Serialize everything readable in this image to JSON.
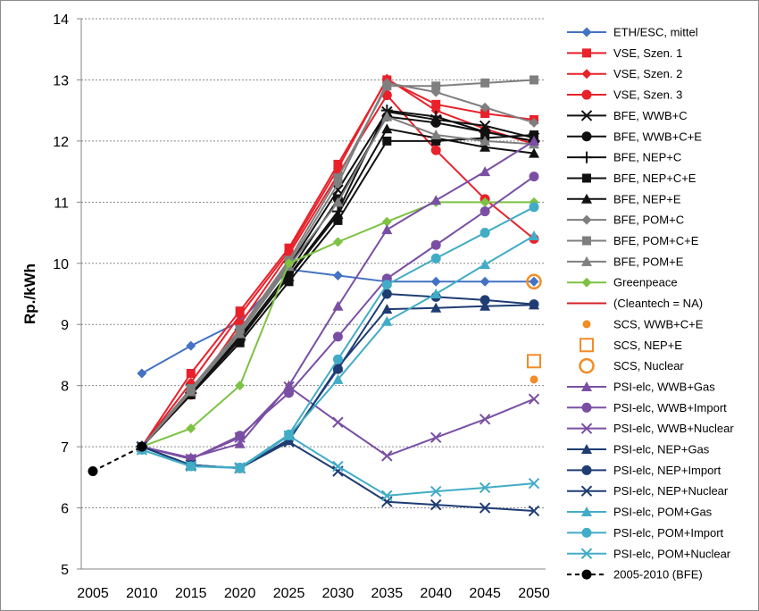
{
  "chart_data": {
    "type": "line",
    "xlabel": "",
    "ylabel": "Rp./kWh",
    "x_ticks": [
      2005,
      2010,
      2015,
      2020,
      2025,
      2030,
      2035,
      2040,
      2045,
      2050
    ],
    "xlim": [
      2005,
      2050
    ],
    "ylim": [
      5,
      14
    ],
    "y_ticks": [
      5,
      6,
      7,
      8,
      9,
      10,
      11,
      12,
      13,
      14
    ],
    "grid": "horizontal",
    "legend_position": "right",
    "series": [
      {
        "name": "ETH/ESC, mittel",
        "color": "#4472C4",
        "marker": "diamond",
        "dash": false,
        "x": [
          2010,
          2015,
          2020,
          2025,
          2030,
          2035,
          2040,
          2045,
          2050
        ],
        "y": [
          8.2,
          8.65,
          9.05,
          9.9,
          9.8,
          9.7,
          9.7,
          9.7,
          9.7
        ]
      },
      {
        "name": "VSE, Szen. 1",
        "color": "#E8212A",
        "marker": "square",
        "dash": false,
        "x": [
          2010,
          2015,
          2020,
          2025,
          2030,
          2035,
          2040,
          2045,
          2050
        ],
        "y": [
          7.0,
          8.2,
          9.22,
          10.25,
          11.62,
          13.0,
          12.6,
          12.45,
          12.35
        ]
      },
      {
        "name": "VSE, Szen. 2",
        "color": "#E8212A",
        "marker": "diamond",
        "dash": false,
        "x": [
          2010,
          2015,
          2020,
          2025,
          2030,
          2035,
          2040,
          2045,
          2050
        ],
        "y": [
          7.0,
          8.05,
          9.15,
          10.2,
          11.55,
          13.02,
          12.5,
          12.2,
          11.95
        ]
      },
      {
        "name": "VSE, Szen. 3",
        "color": "#E8212A",
        "marker": "circle",
        "dash": false,
        "x": [
          2010,
          2015,
          2020,
          2025,
          2030,
          2035,
          2040,
          2045,
          2050
        ],
        "y": [
          7.0,
          7.85,
          9.0,
          10.15,
          11.45,
          12.75,
          11.85,
          11.05,
          10.4
        ]
      },
      {
        "name": "BFE, WWB+C",
        "color": "#111111",
        "marker": "x",
        "dash": false,
        "x": [
          2010,
          2015,
          2020,
          2025,
          2030,
          2035,
          2040,
          2045,
          2050
        ],
        "y": [
          7.0,
          7.95,
          8.85,
          9.95,
          11.2,
          12.48,
          12.35,
          12.25,
          12.05
        ]
      },
      {
        "name": "BFE, WWB+C+E",
        "color": "#111111",
        "marker": "circle",
        "dash": false,
        "x": [
          2010,
          2015,
          2020,
          2025,
          2030,
          2035,
          2040,
          2045,
          2050
        ],
        "y": [
          7.0,
          7.9,
          8.8,
          9.85,
          11.05,
          12.4,
          12.3,
          12.15,
          12.0
        ]
      },
      {
        "name": "BFE, NEP+C",
        "color": "#111111",
        "marker": "plus",
        "dash": false,
        "x": [
          2010,
          2015,
          2020,
          2025,
          2030,
          2035,
          2040,
          2045,
          2050
        ],
        "y": [
          7.0,
          7.88,
          8.75,
          9.8,
          10.85,
          12.5,
          12.4,
          12.15,
          12.0
        ]
      },
      {
        "name": "BFE, NEP+C+E",
        "color": "#111111",
        "marker": "square",
        "dash": false,
        "x": [
          2010,
          2015,
          2020,
          2025,
          2030,
          2035,
          2040,
          2045,
          2050
        ],
        "y": [
          7.0,
          7.85,
          8.7,
          9.7,
          10.7,
          12.0,
          12.0,
          12.05,
          12.1
        ]
      },
      {
        "name": "BFE, NEP+E",
        "color": "#111111",
        "marker": "triangle",
        "dash": false,
        "x": [
          2010,
          2015,
          2020,
          2025,
          2030,
          2035,
          2040,
          2045,
          2050
        ],
        "y": [
          7.0,
          7.9,
          8.78,
          9.78,
          10.8,
          12.2,
          12.05,
          11.9,
          11.8
        ]
      },
      {
        "name": "BFE, POM+C",
        "color": "#7F7F7F",
        "marker": "diamond",
        "dash": false,
        "x": [
          2010,
          2015,
          2020,
          2025,
          2030,
          2035,
          2040,
          2045,
          2050
        ],
        "y": [
          7.0,
          7.92,
          8.9,
          10.0,
          11.3,
          12.95,
          12.8,
          12.55,
          12.3
        ]
      },
      {
        "name": "BFE, POM+C+E",
        "color": "#7F7F7F",
        "marker": "square",
        "dash": false,
        "x": [
          2010,
          2015,
          2020,
          2025,
          2030,
          2035,
          2040,
          2045,
          2050
        ],
        "y": [
          7.0,
          7.95,
          8.92,
          10.05,
          11.4,
          12.9,
          12.9,
          12.95,
          13.0
        ]
      },
      {
        "name": "BFE, POM+E",
        "color": "#7F7F7F",
        "marker": "triangle",
        "dash": false,
        "x": [
          2010,
          2015,
          2020,
          2025,
          2030,
          2035,
          2040,
          2045,
          2050
        ],
        "y": [
          7.0,
          7.9,
          8.85,
          9.95,
          11.0,
          12.4,
          12.1,
          12.0,
          11.95
        ]
      },
      {
        "name": "Greenpeace",
        "color": "#7DC242",
        "marker": "diamond",
        "dash": false,
        "x": [
          2010,
          2015,
          2020,
          2025,
          2030,
          2035,
          2040,
          2045,
          2050
        ],
        "y": [
          7.0,
          7.3,
          8.0,
          10.0,
          10.35,
          10.68,
          11.0,
          11.0,
          11.0
        ]
      },
      {
        "name": "(Cleantech = NA)",
        "color": "#D62027",
        "marker": "none",
        "dash": false,
        "x": [],
        "y": []
      },
      {
        "name": "SCS, WWB+C+E",
        "color": "#F28C28",
        "marker": "circle-small",
        "dash": false,
        "x": [
          2050
        ],
        "y": [
          8.1
        ]
      },
      {
        "name": "SCS, NEP+E",
        "color": "#F28C28",
        "marker": "square-open",
        "dash": false,
        "x": [
          2050
        ],
        "y": [
          8.4
        ]
      },
      {
        "name": "SCS, Nuclear",
        "color": "#F28C28",
        "marker": "circle-open",
        "dash": false,
        "x": [
          2050
        ],
        "y": [
          9.7
        ]
      },
      {
        "name": "PSI-elc, WWB+Gas",
        "color": "#7A4FA3",
        "marker": "triangle",
        "dash": false,
        "x": [
          2010,
          2015,
          2020,
          2025,
          2030,
          2035,
          2040,
          2045,
          2050
        ],
        "y": [
          7.0,
          6.82,
          7.05,
          8.0,
          9.3,
          10.55,
          11.03,
          11.5,
          12.0
        ]
      },
      {
        "name": "PSI-elc, WWB+Import",
        "color": "#7A4FA3",
        "marker": "circle",
        "dash": false,
        "x": [
          2010,
          2015,
          2020,
          2025,
          2030,
          2035,
          2040,
          2045,
          2050
        ],
        "y": [
          7.0,
          6.8,
          7.18,
          7.88,
          8.8,
          9.75,
          10.3,
          10.85,
          11.42
        ]
      },
      {
        "name": "PSI-elc, WWB+Nuclear",
        "color": "#7A4FA3",
        "marker": "x",
        "dash": false,
        "x": [
          2010,
          2015,
          2020,
          2025,
          2030,
          2035,
          2040,
          2045,
          2050
        ],
        "y": [
          7.0,
          6.8,
          7.15,
          7.98,
          7.4,
          6.85,
          7.15,
          7.45,
          7.78
        ]
      },
      {
        "name": "PSI-elc, NEP+Gas",
        "color": "#1F3C73",
        "marker": "triangle",
        "dash": false,
        "x": [
          2010,
          2015,
          2020,
          2025,
          2030,
          2035,
          2040,
          2045,
          2050
        ],
        "y": [
          7.0,
          6.7,
          6.65,
          7.1,
          8.3,
          9.25,
          9.27,
          9.3,
          9.32
        ]
      },
      {
        "name": "PSI-elc, NEP+Import",
        "color": "#1F3C73",
        "marker": "circle",
        "dash": false,
        "x": [
          2010,
          2015,
          2020,
          2025,
          2030,
          2035,
          2040,
          2045,
          2050
        ],
        "y": [
          7.0,
          6.7,
          6.65,
          7.12,
          8.27,
          9.5,
          9.45,
          9.4,
          9.33
        ]
      },
      {
        "name": "PSI-elc, NEP+Nuclear",
        "color": "#1F3C73",
        "marker": "x",
        "dash": false,
        "x": [
          2010,
          2015,
          2020,
          2025,
          2030,
          2035,
          2040,
          2045,
          2050
        ],
        "y": [
          7.0,
          6.7,
          6.65,
          7.08,
          6.6,
          6.1,
          6.05,
          6.0,
          5.95
        ]
      },
      {
        "name": "PSI-elc, POM+Gas",
        "color": "#42ACC6",
        "marker": "triangle",
        "dash": false,
        "x": [
          2010,
          2015,
          2020,
          2025,
          2030,
          2035,
          2040,
          2045,
          2050
        ],
        "y": [
          6.95,
          6.68,
          6.65,
          7.18,
          8.1,
          9.05,
          9.5,
          9.98,
          10.45
        ]
      },
      {
        "name": "PSI-elc, POM+Import",
        "color": "#42ACC6",
        "marker": "circle",
        "dash": false,
        "x": [
          2010,
          2015,
          2020,
          2025,
          2030,
          2035,
          2040,
          2045,
          2050
        ],
        "y": [
          6.95,
          6.68,
          6.66,
          7.2,
          8.43,
          9.65,
          10.08,
          10.5,
          10.92
        ]
      },
      {
        "name": "PSI-elc, POM+Nuclear",
        "color": "#42ACC6",
        "marker": "x",
        "dash": false,
        "x": [
          2010,
          2015,
          2020,
          2025,
          2030,
          2035,
          2040,
          2045,
          2050
        ],
        "y": [
          6.95,
          6.68,
          6.66,
          7.18,
          6.68,
          6.2,
          6.27,
          6.33,
          6.4
        ]
      },
      {
        "name": "2005-2010 (BFE)",
        "color": "#000000",
        "marker": "circle",
        "dash": true,
        "x": [
          2005,
          2010
        ],
        "y": [
          6.6,
          7.0
        ]
      }
    ]
  }
}
